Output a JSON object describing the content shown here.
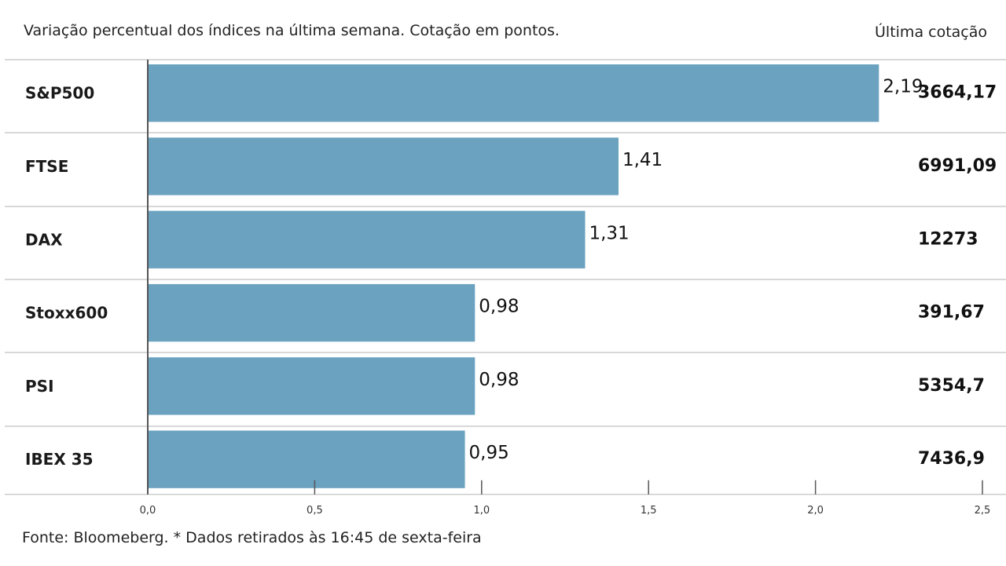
{
  "subtitle": "Variação percentual dos índices na última semana. Cotação em pontos.",
  "last_quote_header": "Última cotação",
  "footer": "Fonte: Bloomeberg. * Dados retirados às 16:45 de sexta-feira",
  "colors": {
    "bar": "#6aa2bf",
    "gridline": "#cccccc",
    "axis": "#555555"
  },
  "chart_data": {
    "type": "bar",
    "orientation": "horizontal",
    "categories": [
      "S&P500",
      "FTSE",
      "DAX",
      "Stoxx600",
      "PSI",
      "IBEX 35"
    ],
    "values": [
      2.19,
      1.41,
      1.31,
      0.98,
      0.98,
      0.95
    ],
    "value_labels": [
      "2,19",
      "1,41",
      "1,31",
      "0,98",
      "0,98",
      "0,95"
    ],
    "last_quote": [
      "3664,17",
      "6991,09",
      "12273",
      "391,67",
      "5354,7",
      "7436,9"
    ],
    "xlim": [
      0,
      2.5
    ],
    "xticks": [
      0,
      0.5,
      1.0,
      1.5,
      2.0,
      2.5
    ],
    "xtick_labels": [
      "0,0",
      "0,5",
      "1,0",
      "1,5",
      "2,0",
      "2,5"
    ],
    "title": "",
    "xlabel": "",
    "ylabel": ""
  }
}
